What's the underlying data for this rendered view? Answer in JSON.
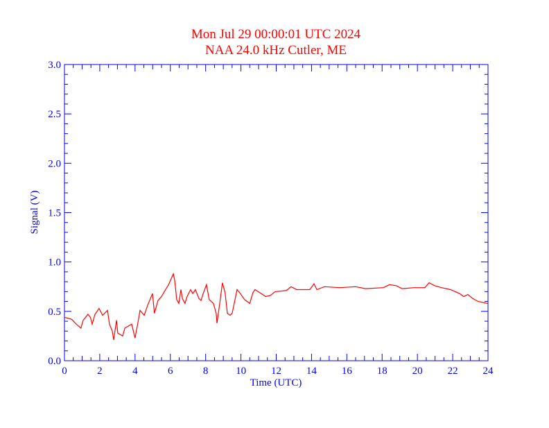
{
  "chart_data": {
    "type": "line",
    "title": "Mon Jul 29 00:00:01 UTC 2024",
    "subtitle": "NAA 24.0 kHz Cutler, ME",
    "xlabel": "Time (UTC)",
    "ylabel": "Signal (V)",
    "xlim": [
      0,
      24
    ],
    "ylim": [
      0,
      3.0
    ],
    "x_ticks": [
      "0",
      "2",
      "4",
      "6",
      "8",
      "10",
      "12",
      "14",
      "16",
      "18",
      "20",
      "22",
      "24"
    ],
    "y_ticks": [
      "0.0",
      "0.5",
      "1.0",
      "1.5",
      "2.0",
      "2.5",
      "3.0"
    ],
    "grid": false,
    "colors": {
      "title": "#ff0000",
      "axes": "#0000ff",
      "series": "#ff0000"
    },
    "series": [
      {
        "x": [
          0,
          0.4,
          0.67,
          0.93,
          1.06,
          1.33,
          1.47,
          1.57,
          1.73,
          1.96,
          2.16,
          2.44,
          2.55,
          2.71,
          2.79,
          2.95,
          3.02,
          3.3,
          3.42,
          3.81,
          4.0,
          4.2,
          4.28,
          4.52,
          4.71,
          4.99,
          5.1,
          5.3,
          5.5,
          5.66,
          5.9,
          6.17,
          6.25,
          6.36,
          6.48,
          6.6,
          6.68,
          6.83,
          6.95,
          7.15,
          7.27,
          7.42,
          7.62,
          7.74,
          7.86,
          8.05,
          8.2,
          8.44,
          8.6,
          8.64,
          8.8,
          8.95,
          9.1,
          9.23,
          9.38,
          9.5,
          9.62,
          9.78,
          9.97,
          10.2,
          10.5,
          10.68,
          10.8,
          11.15,
          11.4,
          11.66,
          11.94,
          12.57,
          12.84,
          13.16,
          13.9,
          14.14,
          14.3,
          14.73,
          15.6,
          16.5,
          17.05,
          18.07,
          18.42,
          18.8,
          19.13,
          19.8,
          20.42,
          20.66,
          20.97,
          21.37,
          21.88,
          22.39,
          22.62,
          22.86,
          23.13,
          23.45,
          23.96,
          24
        ],
        "y": [
          0.44,
          0.42,
          0.37,
          0.33,
          0.41,
          0.47,
          0.44,
          0.37,
          0.47,
          0.53,
          0.46,
          0.51,
          0.37,
          0.3,
          0.21,
          0.41,
          0.28,
          0.25,
          0.33,
          0.37,
          0.23,
          0.42,
          0.51,
          0.46,
          0.56,
          0.68,
          0.48,
          0.61,
          0.65,
          0.7,
          0.77,
          0.88,
          0.81,
          0.62,
          0.58,
          0.72,
          0.63,
          0.58,
          0.65,
          0.72,
          0.68,
          0.72,
          0.63,
          0.61,
          0.68,
          0.77,
          0.62,
          0.58,
          0.48,
          0.38,
          0.58,
          0.79,
          0.69,
          0.48,
          0.46,
          0.48,
          0.58,
          0.72,
          0.68,
          0.62,
          0.58,
          0.69,
          0.72,
          0.68,
          0.65,
          0.66,
          0.7,
          0.71,
          0.75,
          0.72,
          0.72,
          0.78,
          0.72,
          0.75,
          0.74,
          0.75,
          0.73,
          0.74,
          0.77,
          0.76,
          0.73,
          0.74,
          0.74,
          0.79,
          0.76,
          0.74,
          0.72,
          0.68,
          0.65,
          0.67,
          0.63,
          0.6,
          0.58,
          0.58
        ]
      }
    ]
  }
}
